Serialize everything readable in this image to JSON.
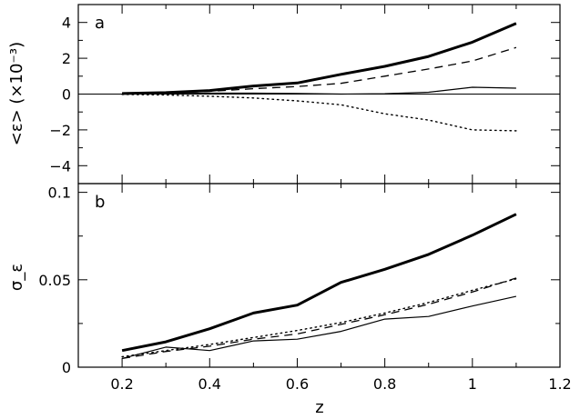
{
  "chart_data": [
    {
      "panel": "a",
      "type": "line",
      "panel_label": "a",
      "xlabel": "",
      "ylabel": "<ε> (×10⁻³)",
      "xlim": [
        0.1,
        1.2
      ],
      "ylim": [
        -5.0,
        5.0
      ],
      "xticks": [
        0.2,
        0.4,
        0.6,
        0.8,
        1.0,
        1.2
      ],
      "yticks": [
        -4,
        -2,
        0,
        2,
        4
      ],
      "ytick_labels": [
        "−4",
        "−2",
        "0",
        "2",
        "4"
      ],
      "zero_line": true,
      "x": [
        0.2,
        0.3,
        0.4,
        0.5,
        0.6,
        0.7,
        0.8,
        0.9,
        1.0,
        1.1
      ],
      "series": [
        {
          "style": "thick-solid",
          "values": [
            0.03,
            0.08,
            0.2,
            0.45,
            0.62,
            1.1,
            1.55,
            2.1,
            2.9,
            3.95
          ]
        },
        {
          "style": "dashed",
          "values": [
            0.02,
            0.05,
            0.15,
            0.3,
            0.42,
            0.6,
            1.0,
            1.4,
            1.85,
            2.6
          ]
        },
        {
          "style": "thin-solid",
          "values": [
            0.0,
            0.02,
            0.05,
            0.05,
            0.03,
            0.0,
            0.02,
            0.1,
            0.38,
            0.33
          ]
        },
        {
          "style": "dotted",
          "values": [
            -0.02,
            -0.05,
            -0.12,
            -0.22,
            -0.38,
            -0.6,
            -1.1,
            -1.45,
            -2.0,
            -2.05
          ]
        }
      ]
    },
    {
      "panel": "b",
      "type": "line",
      "panel_label": "b",
      "xlabel": "z",
      "ylabel": "σ_ε",
      "xlim": [
        0.1,
        1.2
      ],
      "ylim": [
        0,
        0.105
      ],
      "xticks": [
        0.2,
        0.4,
        0.6,
        0.8,
        1.0,
        1.2
      ],
      "xtick_labels": [
        "0.2",
        "0.4",
        "0.6",
        "0.8",
        "1",
        "1.2"
      ],
      "yticks": [
        0,
        0.05,
        0.1
      ],
      "ytick_labels": [
        "0",
        "0.05",
        "0.1"
      ],
      "x": [
        0.2,
        0.3,
        0.4,
        0.5,
        0.6,
        0.7,
        0.8,
        0.9,
        1.0,
        1.1
      ],
      "series": [
        {
          "style": "thick-solid",
          "values": [
            0.0095,
            0.0145,
            0.022,
            0.031,
            0.0355,
            0.0485,
            0.056,
            0.0645,
            0.0755,
            0.0875
          ]
        },
        {
          "style": "dashed",
          "values": [
            0.005,
            0.009,
            0.012,
            0.016,
            0.019,
            0.0245,
            0.03,
            0.036,
            0.043,
            0.051
          ]
        },
        {
          "style": "dotted",
          "values": [
            0.006,
            0.0095,
            0.013,
            0.017,
            0.021,
            0.0255,
            0.031,
            0.037,
            0.044,
            0.0505
          ]
        },
        {
          "style": "thin-solid",
          "values": [
            0.005,
            0.0115,
            0.0095,
            0.015,
            0.016,
            0.0205,
            0.0275,
            0.029,
            0.035,
            0.0405
          ]
        }
      ]
    }
  ]
}
